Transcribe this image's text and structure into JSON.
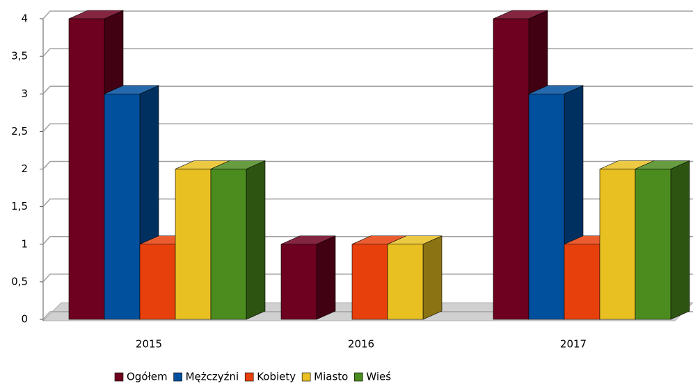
{
  "chart_data": {
    "type": "bar3d",
    "categories": [
      "2015",
      "2016",
      "2017"
    ],
    "series": [
      {
        "name": "Ogółem",
        "color": "#6e0020",
        "values": [
          4,
          1,
          4
        ]
      },
      {
        "name": "Mężczyźni",
        "color": "#00509e",
        "values": [
          3,
          0,
          3
        ]
      },
      {
        "name": "Kobiety",
        "color": "#e8400c",
        "values": [
          1,
          1,
          1
        ]
      },
      {
        "name": "Miasto",
        "color": "#e8c022",
        "values": [
          2,
          1,
          2
        ]
      },
      {
        "name": "Wieś",
        "color": "#4c8c1e",
        "values": [
          2,
          0,
          2
        ]
      }
    ],
    "ylim": [
      0,
      4
    ],
    "yticks": [
      0,
      {
        "value": 0.5,
        "label": "0,5"
      },
      1,
      {
        "value": 1.5,
        "label": "1,5"
      },
      2,
      {
        "value": 2.5,
        "label": "2,5"
      },
      3,
      {
        "value": 3.5,
        "label": "3,5"
      },
      4
    ],
    "grid": true,
    "legend": "bottom"
  }
}
